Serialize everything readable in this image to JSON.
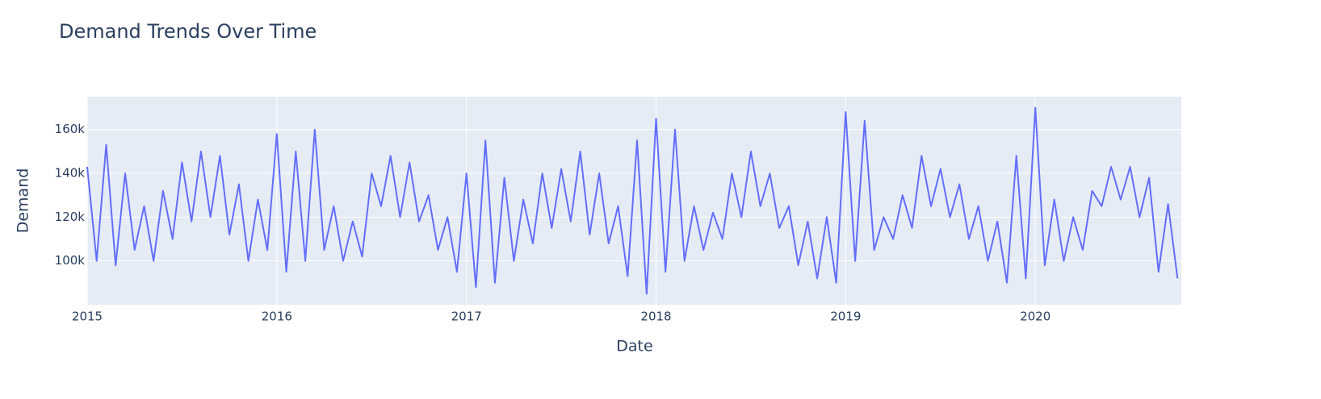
{
  "chart_data": {
    "type": "line",
    "title": "Demand Trends Over Time",
    "x_label": "Date",
    "y_label": "Demand",
    "xlim": [
      2015,
      2020.77
    ],
    "xticks": [
      2015,
      2016,
      2017,
      2018,
      2019,
      2020
    ],
    "ylim": [
      80000,
      175000
    ],
    "yticks": [
      {
        "value": 100000,
        "label": "100k"
      },
      {
        "value": 120000,
        "label": "120k"
      },
      {
        "value": 140000,
        "label": "140k"
      },
      {
        "value": 160000,
        "label": "160k"
      }
    ],
    "grid": true,
    "x": [
      2015,
      2015.05,
      2015.1,
      2015.15,
      2015.2,
      2015.25,
      2015.3,
      2015.35,
      2015.4,
      2015.45,
      2015.5,
      2015.55,
      2015.6,
      2015.65,
      2015.7,
      2015.75,
      2015.8,
      2015.85,
      2015.9,
      2015.95,
      2016,
      2016.05,
      2016.1,
      2016.15,
      2016.2,
      2016.25,
      2016.3,
      2016.35,
      2016.4,
      2016.45,
      2016.5,
      2016.55,
      2016.6,
      2016.65,
      2016.7,
      2016.75,
      2016.8,
      2016.85,
      2016.9,
      2016.95,
      2017,
      2017.05,
      2017.1,
      2017.15,
      2017.2,
      2017.25,
      2017.3,
      2017.35,
      2017.4,
      2017.45,
      2017.5,
      2017.55,
      2017.6,
      2017.65,
      2017.7,
      2017.75,
      2017.8,
      2017.85,
      2017.9,
      2017.95,
      2018,
      2018.05,
      2018.1,
      2018.15,
      2018.2,
      2018.25,
      2018.3,
      2018.35,
      2018.4,
      2018.45,
      2018.5,
      2018.55,
      2018.6,
      2018.65,
      2018.7,
      2018.75,
      2018.8,
      2018.85,
      2018.9,
      2018.95,
      2019,
      2019.05,
      2019.1,
      2019.15,
      2019.2,
      2019.25,
      2019.3,
      2019.35,
      2019.4,
      2019.45,
      2019.5,
      2019.55,
      2019.6,
      2019.65,
      2019.7,
      2019.75,
      2019.8,
      2019.85,
      2019.9,
      2019.95,
      2020,
      2020.05,
      2020.1,
      2020.15,
      2020.2,
      2020.25,
      2020.3,
      2020.35,
      2020.4,
      2020.45,
      2020.5,
      2020.55,
      2020.6,
      2020.65,
      2020.7,
      2020.75
    ],
    "series": [
      {
        "name": "Demand",
        "color": "#636efa",
        "values": [
          143000,
          100000,
          153000,
          98000,
          140000,
          105000,
          125000,
          100000,
          132000,
          110000,
          145000,
          118000,
          150000,
          120000,
          148000,
          112000,
          135000,
          100000,
          128000,
          105000,
          158000,
          95000,
          150000,
          100000,
          160000,
          105000,
          125000,
          100000,
          118000,
          102000,
          140000,
          125000,
          148000,
          120000,
          145000,
          118000,
          130000,
          105000,
          120000,
          95000,
          140000,
          88000,
          155000,
          90000,
          138000,
          100000,
          128000,
          108000,
          140000,
          115000,
          142000,
          118000,
          150000,
          112000,
          140000,
          108000,
          125000,
          93000,
          155000,
          85000,
          165000,
          95000,
          160000,
          100000,
          125000,
          105000,
          122000,
          110000,
          140000,
          120000,
          150000,
          125000,
          140000,
          115000,
          125000,
          98000,
          118000,
          92000,
          120000,
          90000,
          168000,
          100000,
          164000,
          105000,
          120000,
          110000,
          130000,
          115000,
          148000,
          125000,
          142000,
          120000,
          135000,
          110000,
          125000,
          100000,
          118000,
          90000,
          148000,
          92000,
          170000,
          98000,
          128000,
          100000,
          120000,
          105000,
          132000,
          125000,
          143000,
          128000,
          143000,
          120000,
          138000,
          95000,
          126000,
          92000
        ]
      }
    ]
  }
}
